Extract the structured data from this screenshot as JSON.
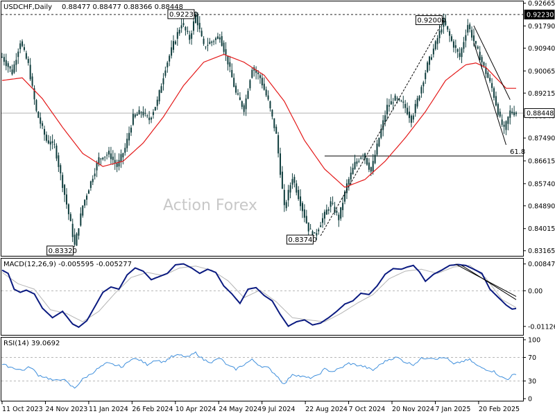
{
  "header": {
    "symbol_tf": "USDCHF,Daily",
    "ohlc": "0.88477 0.88477 0.88366 0.88448"
  },
  "watermark": "Action Forex",
  "colors": {
    "candle": "#0f3d3d",
    "ma": "#e41a1a",
    "macd": "#0a1a80",
    "signal": "#b4b4b4",
    "trend": "#000000",
    "rsi": "#3f8fdc",
    "grid": "#a0a0a0"
  },
  "chart_data": [
    {
      "type": "candlestick",
      "title": "USDCHF,Daily",
      "ylim": [
        0.8305,
        0.9268
      ],
      "y_ticks": [
        "0.92665",
        "0.91790",
        "0.90940",
        "0.90065",
        "0.89215",
        "0.88340",
        "0.87490",
        "0.86615",
        "0.85740",
        "0.84890",
        "0.84015",
        "0.83165"
      ],
      "x_ticks": [
        "11 Oct 2023",
        "24 Nov 2023",
        "11 Jan 2024",
        "26 Feb 2024",
        "10 Apr 2024",
        "24 May 2024",
        "9 Jul 2024",
        "22 Aug 2024",
        "7 Oct 2024",
        "20 Nov 2024",
        "7 Jan 2025",
        "20 Feb 2025"
      ],
      "anchors": [
        [
          0,
          0.906
        ],
        [
          5,
          0.9
        ],
        [
          9,
          0.912
        ],
        [
          13,
          0.903
        ],
        [
          17,
          0.885
        ],
        [
          22,
          0.874
        ],
        [
          26,
          0.872
        ],
        [
          30,
          0.857
        ],
        [
          34,
          0.842
        ],
        [
          36,
          0.8336
        ],
        [
          40,
          0.849
        ],
        [
          44,
          0.858
        ],
        [
          48,
          0.867
        ],
        [
          53,
          0.869
        ],
        [
          57,
          0.864
        ],
        [
          61,
          0.871
        ],
        [
          65,
          0.883
        ],
        [
          69,
          0.885
        ],
        [
          73,
          0.882
        ],
        [
          77,
          0.889
        ],
        [
          81,
          0.902
        ],
        [
          85,
          0.911
        ],
        [
          89,
          0.919
        ],
        [
          93,
          0.913
        ],
        [
          96,
          0.9221
        ],
        [
          100,
          0.91
        ],
        [
          104,
          0.912
        ],
        [
          108,
          0.914
        ],
        [
          112,
          0.904
        ],
        [
          116,
          0.892
        ],
        [
          120,
          0.886
        ],
        [
          124,
          0.902
        ],
        [
          128,
          0.898
        ],
        [
          132,
          0.889
        ],
        [
          136,
          0.876
        ],
        [
          140,
          0.848
        ],
        [
          144,
          0.86
        ],
        [
          148,
          0.85
        ],
        [
          152,
          0.84
        ],
        [
          155,
          0.8375
        ],
        [
          159,
          0.844
        ],
        [
          163,
          0.85
        ],
        [
          167,
          0.844
        ],
        [
          171,
          0.857
        ],
        [
          175,
          0.865
        ],
        [
          179,
          0.869
        ],
        [
          183,
          0.862
        ],
        [
          187,
          0.875
        ],
        [
          191,
          0.887
        ],
        [
          195,
          0.89
        ],
        [
          199,
          0.888
        ],
        [
          203,
          0.882
        ],
        [
          207,
          0.892
        ],
        [
          211,
          0.903
        ],
        [
          215,
          0.911
        ],
        [
          219,
          0.9198
        ],
        [
          223,
          0.912
        ],
        [
          227,
          0.906
        ],
        [
          231,
          0.9185
        ],
        [
          235,
          0.91
        ],
        [
          239,
          0.902
        ],
        [
          243,
          0.894
        ],
        [
          247,
          0.882
        ],
        [
          249,
          0.878
        ],
        [
          252,
          0.885
        ],
        [
          255,
          0.8845
        ]
      ],
      "ma_anchors": [
        [
          0,
          0.897
        ],
        [
          10,
          0.898
        ],
        [
          20,
          0.89
        ],
        [
          30,
          0.879
        ],
        [
          40,
          0.869
        ],
        [
          50,
          0.864
        ],
        [
          60,
          0.866
        ],
        [
          70,
          0.873
        ],
        [
          80,
          0.883
        ],
        [
          90,
          0.895
        ],
        [
          100,
          0.904
        ],
        [
          110,
          0.907
        ],
        [
          120,
          0.904
        ],
        [
          130,
          0.899
        ],
        [
          140,
          0.889
        ],
        [
          150,
          0.874
        ],
        [
          160,
          0.863
        ],
        [
          170,
          0.856
        ],
        [
          180,
          0.859
        ],
        [
          190,
          0.866
        ],
        [
          200,
          0.875
        ],
        [
          210,
          0.885
        ],
        [
          220,
          0.897
        ],
        [
          230,
          0.903
        ],
        [
          235,
          0.9037
        ],
        [
          240,
          0.902
        ],
        [
          245,
          0.898
        ],
        [
          250,
          0.894
        ]
      ],
      "annotations": [
        {
          "label": "0.92230",
          "value": 0.9223,
          "bar": 96
        },
        {
          "label": "0.92000",
          "value": 0.92,
          "bar": 219
        },
        {
          "label": "0.83320",
          "value": 0.8332,
          "bar": 36
        },
        {
          "label": "0.83740",
          "value": 0.8374,
          "bar": 155
        }
      ],
      "price_tags": [
        {
          "label": "0.92230",
          "value": 0.9223,
          "style": "dark"
        },
        {
          "label": "0.88448",
          "value": 0.88448,
          "style": "light"
        }
      ],
      "horizontal_line": {
        "value": 0.868,
        "from_bar": 160,
        "label": "61.8"
      },
      "channel_lines": [
        {
          "from": [
            234,
            0.918
          ],
          "to": [
            252,
            0.8896
          ]
        },
        {
          "from": [
            234,
            0.9115
          ],
          "to": [
            250,
            0.8723
          ]
        }
      ],
      "dashed_trendline": {
        "from": [
          158,
          0.8374
        ],
        "to": [
          219,
          0.92
        ]
      },
      "total_bars": 256
    },
    {
      "type": "line",
      "title": "MACD(12,26,9) -0.005595 -0.005277",
      "ylim": [
        -0.0135,
        0.0095
      ],
      "y_ticks": [
        "0.008471",
        "0.00",
        "-0.011265"
      ],
      "zero_line": 0,
      "anchors": [
        [
          0,
          0.0065
        ],
        [
          3,
          0.0055
        ],
        [
          6,
          0.0005
        ],
        [
          9,
          -0.0005
        ],
        [
          12,
          0.0002
        ],
        [
          16,
          -0.001
        ],
        [
          20,
          -0.0055
        ],
        [
          25,
          -0.0085
        ],
        [
          30,
          -0.0065
        ],
        [
          35,
          -0.0105
        ],
        [
          38,
          -0.0115
        ],
        [
          42,
          -0.0095
        ],
        [
          46,
          -0.005
        ],
        [
          50,
          -0.0005
        ],
        [
          54,
          0.0012
        ],
        [
          58,
          0.0005
        ],
        [
          62,
          0.005
        ],
        [
          66,
          0.0072
        ],
        [
          70,
          0.0062
        ],
        [
          74,
          0.0035
        ],
        [
          78,
          0.0045
        ],
        [
          82,
          0.0055
        ],
        [
          86,
          0.0082
        ],
        [
          90,
          0.0085
        ],
        [
          94,
          0.0072
        ],
        [
          98,
          0.0055
        ],
        [
          102,
          0.0068
        ],
        [
          106,
          0.0058
        ],
        [
          110,
          0.0015
        ],
        [
          114,
          -0.001
        ],
        [
          118,
          -0.004
        ],
        [
          122,
          0.0005
        ],
        [
          126,
          0.001
        ],
        [
          130,
          -0.0015
        ],
        [
          134,
          -0.0032
        ],
        [
          138,
          -0.0075
        ],
        [
          142,
          -0.0112
        ],
        [
          146,
          -0.0098
        ],
        [
          150,
          -0.0092
        ],
        [
          154,
          -0.0108
        ],
        [
          158,
          -0.0102
        ],
        [
          162,
          -0.0085
        ],
        [
          166,
          -0.0065
        ],
        [
          170,
          -0.0042
        ],
        [
          174,
          -0.0032
        ],
        [
          178,
          -0.0008
        ],
        [
          182,
          -0.0012
        ],
        [
          186,
          0.0015
        ],
        [
          190,
          0.0052
        ],
        [
          194,
          0.007
        ],
        [
          198,
          0.0068
        ],
        [
          201,
          0.0075
        ],
        [
          204,
          0.008
        ],
        [
          207,
          0.006
        ],
        [
          210,
          0.003
        ],
        [
          214,
          0.0052
        ],
        [
          218,
          0.0065
        ],
        [
          222,
          0.008
        ],
        [
          226,
          0.0083
        ],
        [
          230,
          0.008
        ],
        [
          234,
          0.0068
        ],
        [
          238,
          0.0055
        ],
        [
          242,
          0.0005
        ],
        [
          246,
          -0.002
        ],
        [
          250,
          -0.0045
        ],
        [
          253,
          -0.0058
        ],
        [
          255,
          -0.0056
        ]
      ],
      "signal_anchors": [
        [
          0,
          0.0058
        ],
        [
          8,
          0.0022
        ],
        [
          16,
          0.0005
        ],
        [
          24,
          -0.006
        ],
        [
          32,
          -0.0072
        ],
        [
          40,
          -0.0098
        ],
        [
          48,
          -0.0065
        ],
        [
          56,
          -0.0008
        ],
        [
          64,
          0.0042
        ],
        [
          72,
          0.0058
        ],
        [
          80,
          0.0048
        ],
        [
          88,
          0.0072
        ],
        [
          96,
          0.0078
        ],
        [
          104,
          0.0065
        ],
        [
          112,
          0.0032
        ],
        [
          120,
          -0.0022
        ],
        [
          128,
          0.0002
        ],
        [
          136,
          -0.0035
        ],
        [
          144,
          -0.0085
        ],
        [
          152,
          -0.0092
        ],
        [
          160,
          -0.0098
        ],
        [
          168,
          -0.0072
        ],
        [
          176,
          -0.004
        ],
        [
          184,
          -0.0012
        ],
        [
          192,
          0.0038
        ],
        [
          200,
          0.0062
        ],
        [
          208,
          0.0068
        ],
        [
          216,
          0.0055
        ],
        [
          224,
          0.0075
        ],
        [
          232,
          0.008
        ],
        [
          240,
          0.004
        ],
        [
          248,
          -0.0028
        ],
        [
          255,
          -0.0053
        ]
      ],
      "trendlines": [
        {
          "from": [
            225,
            0.0084
          ],
          "to": [
            255,
            -0.0018
          ]
        },
        {
          "from": [
            228,
            0.008
          ],
          "to": [
            255,
            -0.0028
          ]
        }
      ],
      "total_bars": 256
    },
    {
      "type": "line",
      "title": "RSI(14) 39.0692",
      "ylim": [
        0,
        100
      ],
      "y_ticks": [
        "100",
        "70",
        "30",
        "0"
      ],
      "levels": [
        70,
        30
      ],
      "anchors": [
        [
          0,
          58
        ],
        [
          6,
          52
        ],
        [
          10,
          48
        ],
        [
          14,
          54
        ],
        [
          18,
          40
        ],
        [
          22,
          36
        ],
        [
          26,
          30
        ],
        [
          30,
          34
        ],
        [
          34,
          22
        ],
        [
          36,
          18
        ],
        [
          40,
          33
        ],
        [
          44,
          42
        ],
        [
          48,
          52
        ],
        [
          52,
          60
        ],
        [
          56,
          57
        ],
        [
          60,
          54
        ],
        [
          64,
          68
        ],
        [
          68,
          66
        ],
        [
          72,
          58
        ],
        [
          76,
          66
        ],
        [
          80,
          62
        ],
        [
          84,
          71
        ],
        [
          88,
          74
        ],
        [
          92,
          70
        ],
        [
          96,
          78
        ],
        [
          100,
          66
        ],
        [
          104,
          62
        ],
        [
          108,
          69
        ],
        [
          112,
          56
        ],
        [
          116,
          50
        ],
        [
          120,
          58
        ],
        [
          124,
          66
        ],
        [
          128,
          56
        ],
        [
          132,
          52
        ],
        [
          136,
          40
        ],
        [
          140,
          24
        ],
        [
          144,
          42
        ],
        [
          148,
          38
        ],
        [
          152,
          35
        ],
        [
          156,
          38
        ],
        [
          160,
          50
        ],
        [
          164,
          46
        ],
        [
          168,
          52
        ],
        [
          172,
          60
        ],
        [
          176,
          57
        ],
        [
          180,
          54
        ],
        [
          184,
          48
        ],
        [
          188,
          59
        ],
        [
          192,
          67
        ],
        [
          196,
          70
        ],
        [
          200,
          62
        ],
        [
          204,
          58
        ],
        [
          208,
          68
        ],
        [
          212,
          70
        ],
        [
          216,
          68
        ],
        [
          220,
          70
        ],
        [
          224,
          58
        ],
        [
          228,
          63
        ],
        [
          232,
          66
        ],
        [
          236,
          55
        ],
        [
          240,
          50
        ],
        [
          244,
          46
        ],
        [
          248,
          36
        ],
        [
          251,
          32
        ],
        [
          253,
          42
        ],
        [
          255,
          39
        ]
      ],
      "total_bars": 256
    }
  ]
}
